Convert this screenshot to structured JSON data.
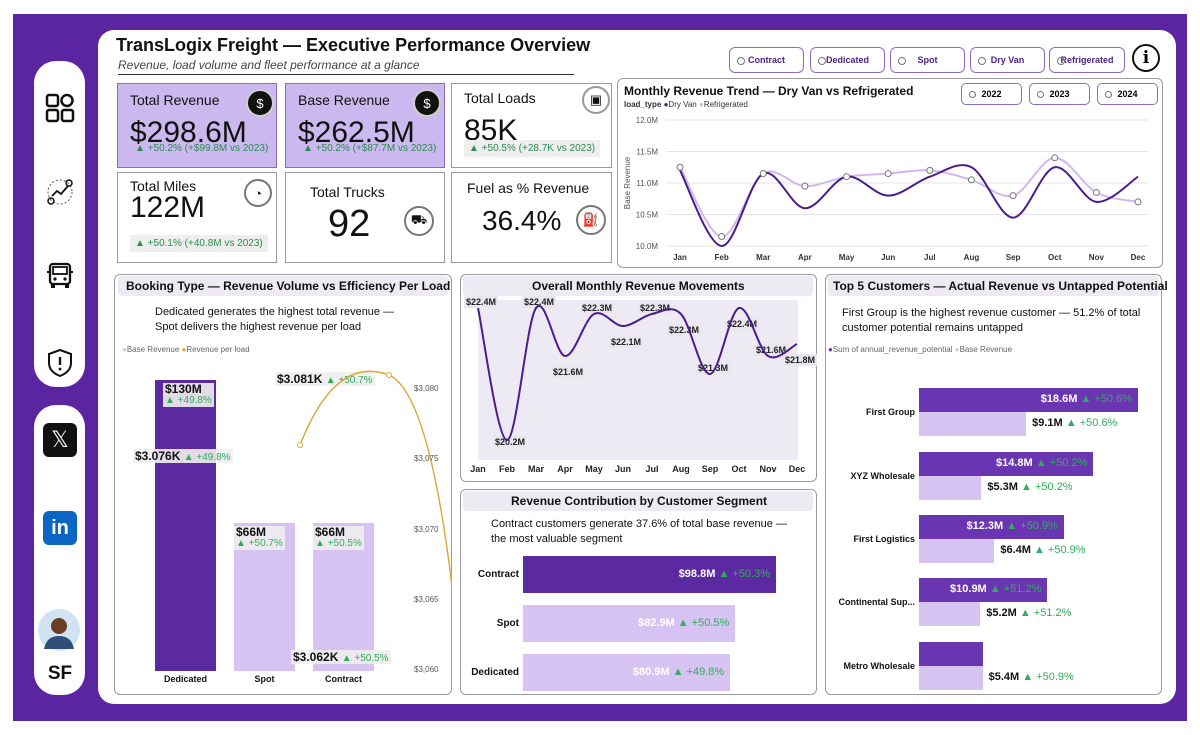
{
  "header": {
    "title": "TransLogix Freight — Executive Performance Overview",
    "subtitle": "Revenue, load volume and fleet performance at a glance",
    "filters": [
      "Contract",
      "Dedicated",
      "Spot",
      "Dry Van",
      "Refrigerated"
    ],
    "info_glyph": "i"
  },
  "sidebar": {
    "icons": [
      "dashboard-icon",
      "analytics-icon",
      "truck-icon",
      "alert-shield-icon"
    ],
    "social": [
      "x-logo-icon",
      "linkedin-icon"
    ],
    "initials": "SF"
  },
  "kpis": {
    "total_revenue": {
      "label": "Total Revenue",
      "value": "$298.6M",
      "change": "▲ +50.2% (+$99.8M vs 2023)"
    },
    "base_revenue": {
      "label": "Base Revenue",
      "value": "$262.5M",
      "change": "▲ +50.2% (+$87.7M vs 2023)"
    },
    "total_loads": {
      "label": "Total Loads",
      "value": "85K",
      "change": "▲ +50.5% (+28.7K vs 2023)"
    },
    "total_miles": {
      "label": "Total Miles",
      "value": "122M",
      "change": "▲ +50.1% (+40.8M vs 2023)"
    },
    "total_trucks": {
      "label": "Total Trucks",
      "value": "92"
    },
    "fuel_pct": {
      "label": "Fuel as % Revenue",
      "value": "36.4%"
    }
  },
  "trend": {
    "title": "Monthly Revenue Trend — Dry Van vs Refrigerated",
    "legend_title": "load_type",
    "years": [
      "2022",
      "2023",
      "2024"
    ],
    "colors": {
      "dry_van": "#4b1d8c",
      "refrigerated": "#d2b6ee"
    },
    "chart_data": {
      "type": "line",
      "ylabel": "Base Revenue",
      "ylim": [
        10.0,
        12.0
      ],
      "yticks": [
        "10.0M",
        "10.5M",
        "11.0M",
        "11.5M",
        "12.0M"
      ],
      "categories": [
        "Jan",
        "Feb",
        "Mar",
        "Apr",
        "May",
        "Jun",
        "Jul",
        "Aug",
        "Sep",
        "Oct",
        "Nov",
        "Dec"
      ],
      "series": [
        {
          "name": "Dry Van",
          "values": [
            11.2,
            10.0,
            11.15,
            10.6,
            11.1,
            10.8,
            11.1,
            11.25,
            10.45,
            11.25,
            10.7,
            11.1
          ]
        },
        {
          "name": "Refrigerated",
          "values": [
            11.25,
            10.15,
            11.15,
            10.95,
            11.1,
            11.15,
            11.2,
            11.05,
            10.8,
            11.4,
            10.85,
            10.7
          ]
        }
      ]
    }
  },
  "booking": {
    "title": "Booking Type — Revenue Volume vs Efficiency Per Load",
    "note_line1": "Dedicated generates the highest total revenue —",
    "note_line2": "Spot delivers the highest revenue per load",
    "legend": [
      "Base Revenue",
      "Revenue per load"
    ],
    "colors": {
      "dedicated": "#5b2aa0",
      "other": "#d6c3f1",
      "line": "#d9ab3a"
    },
    "right_ticks": [
      "$3,080",
      "$3,075",
      "$3,070",
      "$3,065",
      "$3,060"
    ],
    "chart_data": {
      "type": "bar",
      "categories": [
        "Dedicated",
        "Spot",
        "Contract"
      ],
      "bar_labels": [
        "$130M",
        "$66M",
        "$66M"
      ],
      "bar_changes": [
        "▲ +49.8%",
        "▲ +50.7%",
        "▲ +50.5%"
      ],
      "values_millions": [
        130,
        66,
        66
      ],
      "per_load_values": [
        3076,
        3081,
        3062
      ],
      "per_load_labels": [
        "$3.076K",
        "$3.081K",
        "$3.062K"
      ],
      "per_load_changes": [
        "▲ +49.8%",
        "▲ +50.7%",
        "▲ +50.5%"
      ],
      "per_load_ylim": [
        3060,
        3082
      ]
    }
  },
  "movements": {
    "title": "Overall Monthly Revenue Movements",
    "chart_data": {
      "type": "line",
      "categories": [
        "Jan",
        "Feb",
        "Mar",
        "Apr",
        "May",
        "Jun",
        "Jul",
        "Aug",
        "Sep",
        "Oct",
        "Nov",
        "Dec"
      ],
      "values": [
        22.4,
        20.2,
        22.4,
        21.6,
        22.3,
        22.1,
        22.3,
        22.3,
        21.3,
        22.4,
        21.6,
        21.8
      ],
      "labels": [
        "$22.4M",
        "$20.2M",
        "$22.4M",
        "$21.6M",
        "$22.3M",
        "$22.1M",
        "$22.3M",
        "$22.3M",
        "$21.3M",
        "$22.4M",
        "$21.6M",
        "$21.8M"
      ],
      "ylim": [
        20.0,
        22.7
      ]
    }
  },
  "segment": {
    "title": "Revenue Contribution by Customer Segment",
    "note_line1": "Contract customers generate 37.6% of total base revenue —",
    "note_line2": "the most valuable segment",
    "chart_data": {
      "type": "bar",
      "categories": [
        "Contract",
        "Spot",
        "Dedicated"
      ],
      "values_millions": [
        98.8,
        82.9,
        80.9
      ],
      "labels": [
        "$98.8M",
        "$82.9M",
        "$80.9M"
      ],
      "changes": [
        "▲ +50.3%",
        "▲ +50.5%",
        "▲ +49.8%"
      ]
    }
  },
  "customers": {
    "title": "Top 5 Customers — Actual Revenue vs Untapped Potential",
    "note_line1": "First Group is the highest revenue customer — 51.2% of total",
    "note_line2": "customer potential remains untapped",
    "legend": [
      "Sum of annual_revenue_potential",
      "Base Revenue"
    ],
    "chart_data": {
      "type": "bar",
      "categories": [
        "First Group",
        "XYZ Wholesale",
        "First Logistics",
        "Continental Sup...",
        "Metro Wholesale"
      ],
      "series": [
        {
          "name": "Sum of annual_revenue_potential",
          "values": [
            18.6,
            14.8,
            12.3,
            10.9,
            5.4
          ],
          "labels": [
            "$18.6M",
            "$14.8M",
            "$12.3M",
            "$10.9M",
            ""
          ],
          "changes": [
            "▲ +50.6%",
            "▲ +50.2%",
            "▲ +50.9%",
            "▲ +51.2%",
            ""
          ]
        },
        {
          "name": "Base Revenue",
          "values": [
            9.1,
            5.3,
            6.4,
            5.2,
            5.4
          ],
          "labels": [
            "$9.1M",
            "$5.3M",
            "$6.4M",
            "$5.2M",
            "$5.4M"
          ],
          "changes": [
            "▲ +50.6%",
            "▲ +50.2%",
            "▲ +50.9%",
            "▲ +51.2%",
            "▲ +50.9%"
          ]
        }
      ]
    }
  }
}
